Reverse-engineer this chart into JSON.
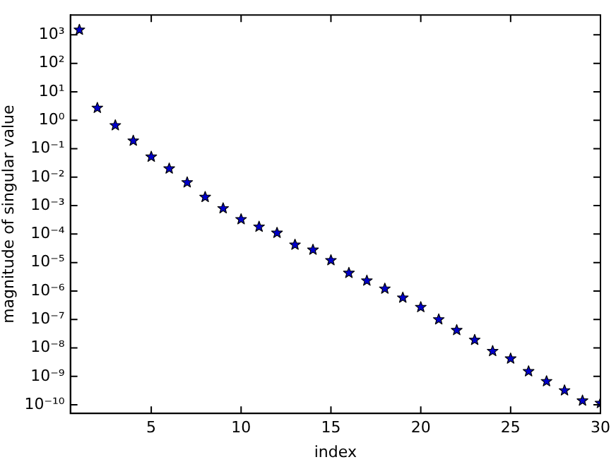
{
  "chart_data": {
    "type": "scatter",
    "xlabel": "index",
    "ylabel": "magnitude of singular value",
    "marker": "star",
    "grid": false,
    "log": "y",
    "xlim": [
      0.5,
      30
    ],
    "xticks": [
      5,
      10,
      15,
      20,
      25,
      30
    ],
    "ylim": [
      5e-11,
      5000
    ],
    "yticks": [
      {
        "value": 1e-10,
        "label": "10⁻¹⁰"
      },
      {
        "value": 1e-09,
        "label": "10⁻⁹"
      },
      {
        "value": 1e-08,
        "label": "10⁻⁸"
      },
      {
        "value": 1e-07,
        "label": "10⁻⁷"
      },
      {
        "value": 1e-06,
        "label": "10⁻⁶"
      },
      {
        "value": 1e-05,
        "label": "10⁻⁵"
      },
      {
        "value": 0.0001,
        "label": "10⁻⁴"
      },
      {
        "value": 0.001,
        "label": "10⁻³"
      },
      {
        "value": 0.01,
        "label": "10⁻²"
      },
      {
        "value": 0.1,
        "label": "10⁻¹"
      },
      {
        "value": 1,
        "label": "10⁰"
      },
      {
        "value": 10,
        "label": "10¹"
      },
      {
        "value": 100,
        "label": "10²"
      },
      {
        "value": 1000,
        "label": "10³"
      }
    ],
    "x": [
      1,
      2,
      3,
      4,
      5,
      6,
      7,
      8,
      9,
      10,
      11,
      12,
      13,
      14,
      15,
      16,
      17,
      18,
      19,
      20,
      21,
      22,
      23,
      24,
      25,
      26,
      27,
      28,
      29,
      30
    ],
    "series": [
      {
        "color": "#0000cc",
        "values": [
          1500,
          2.7,
          0.66,
          0.19,
          0.052,
          0.02,
          0.0065,
          0.002,
          0.0008,
          0.00033,
          0.00018,
          0.00011,
          4.2e-05,
          2.8e-05,
          1.2e-05,
          4.3e-06,
          2.3e-06,
          1.2e-06,
          5.8e-07,
          2.7e-07,
          1e-07,
          4.2e-08,
          1.9e-08,
          7.7e-09,
          4.2e-09,
          1.5e-09,
          6.7e-10,
          3.2e-10,
          1.4e-10,
          1.15e-10
        ]
      }
    ]
  }
}
